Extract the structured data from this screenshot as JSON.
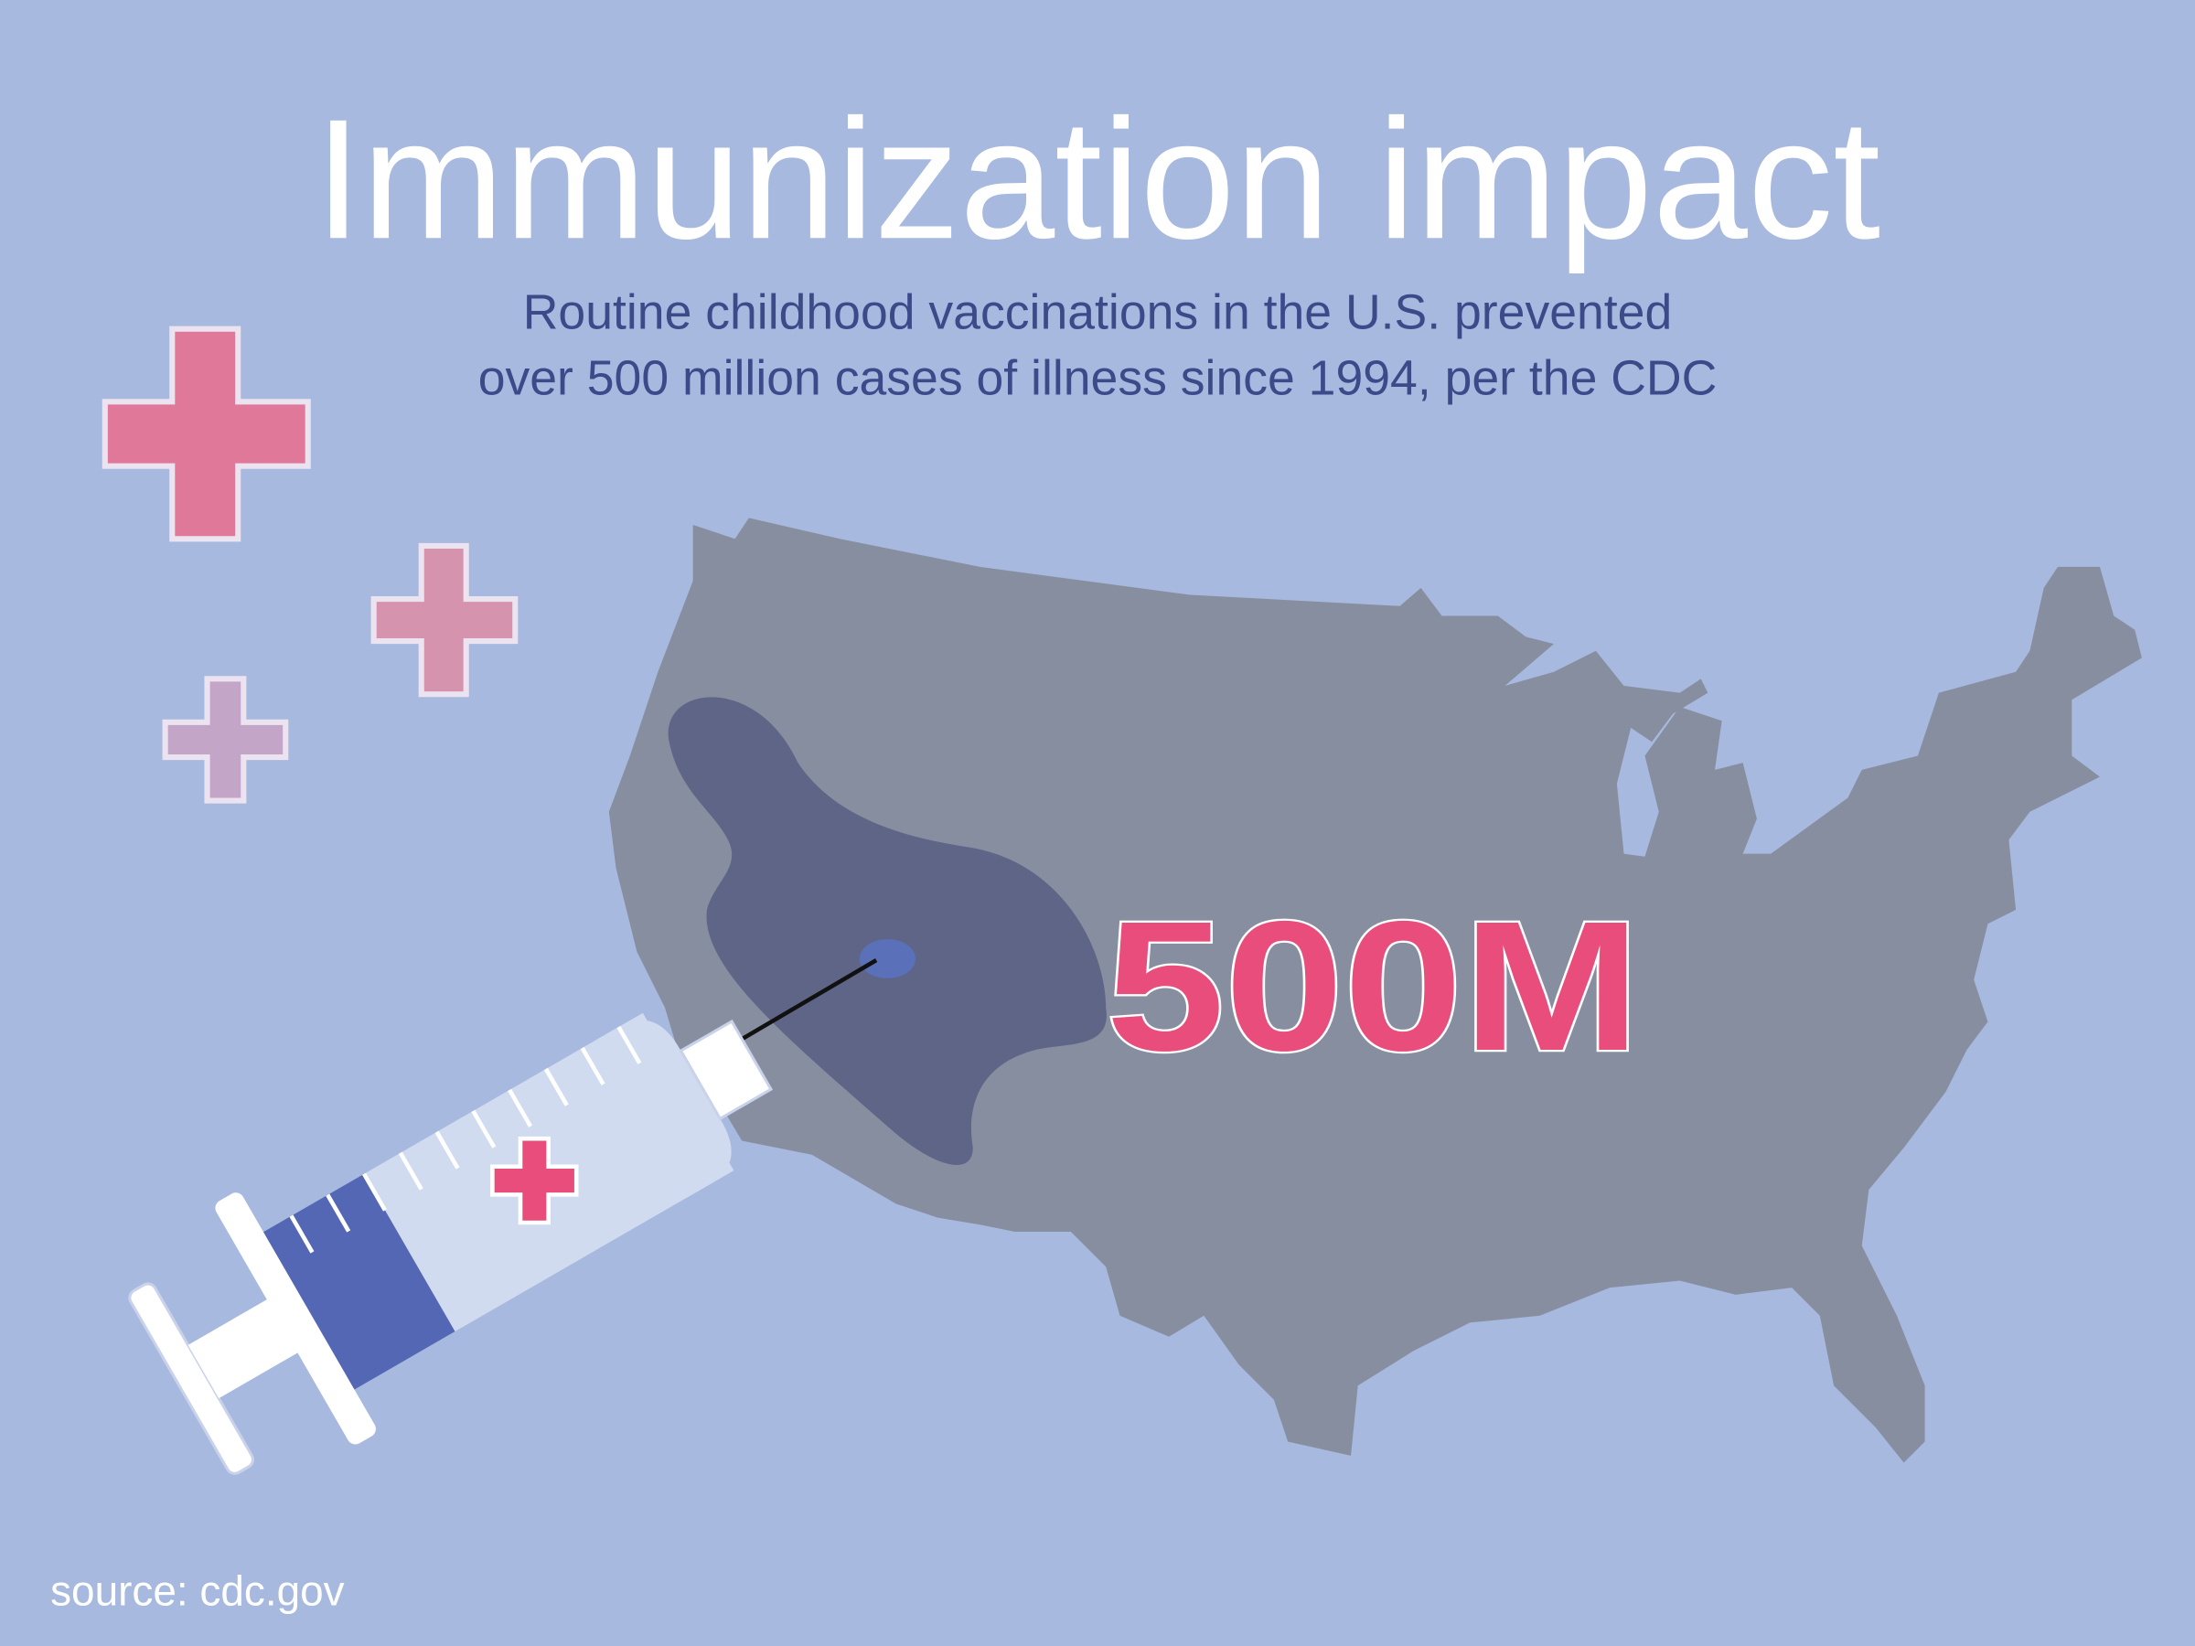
{
  "title": "Immunization impact",
  "subtitle": {
    "lines": [
      "Routine childhood vaccinations in the U.S. prevented",
      "over 500 million cases of illness since 1994, per the CDC"
    ]
  },
  "highlight": "500M",
  "source": "source: cdc.gov"
}
